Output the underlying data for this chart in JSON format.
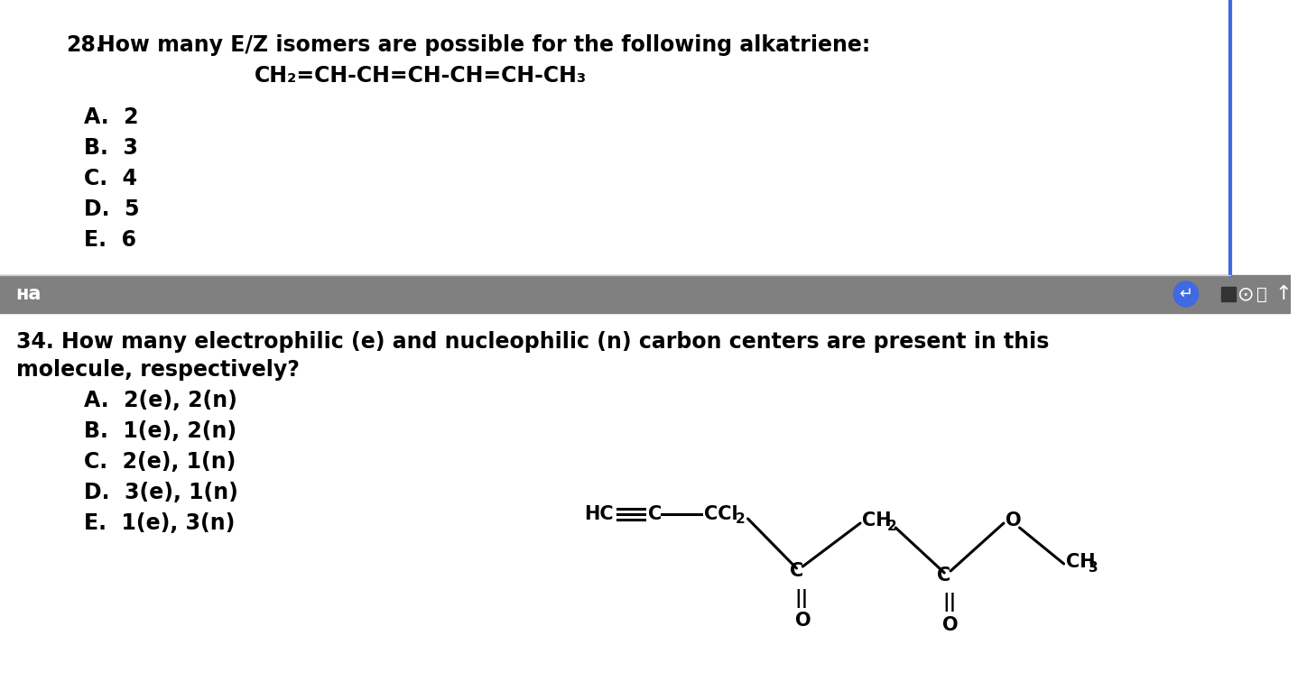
{
  "bg_color": "#ffffff",
  "top_section_bg": "#ffffff",
  "toolbar_bg": "#808080",
  "bottom_section_bg": "#ffffff",
  "blue_line_color": "#4169e1",
  "blue_circle_color": "#4169e1",
  "text_color": "#000000",
  "q28_number": "28.",
  "q28_title": "How many E/Z isomers are possible for the following alkatriene:",
  "q28_formula": "CH₂=CH-CH=CH-CH=CH-CH₃",
  "q28_options": [
    "A.  2",
    "B.  3",
    "C.  4",
    "D.  5",
    "E.  6"
  ],
  "toolbar_text": "нa",
  "q34_title_line1": "34. How many electrophilic (e) and nucleophilic (n) carbon centers are present in this",
  "q34_title_line2": "molecule, respectively?",
  "q34_options": [
    "A.  2(e), 2(n)",
    "B.  1(e), 2(n)",
    "C.  2(e), 1(n)",
    "D.  3(e), 1(n)",
    "E.  1(e), 3(n)"
  ]
}
